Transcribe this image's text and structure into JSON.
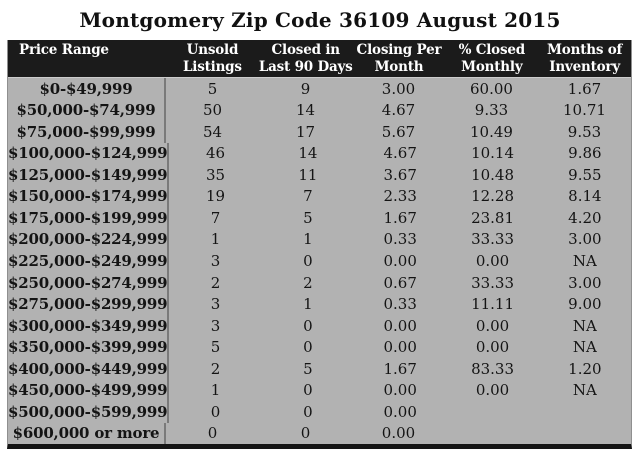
{
  "title": "Montgomery Zip Code 36109 August 2015",
  "colors": {
    "page_bg": "#ffffff",
    "header_bg": "#1b1b1b",
    "header_text": "#ffffff",
    "body_bg": "#b2b2b2",
    "divider": "#7a7a7a",
    "bottom_border": "#141414"
  },
  "table": {
    "columns": [
      {
        "label": "Price Range"
      },
      {
        "label": "Unsold\nListings"
      },
      {
        "label": "Closed in\nLast 90 Days"
      },
      {
        "label": "Closing Per\nMonth"
      },
      {
        "label": "% Closed\nMonthly"
      },
      {
        "label": "Months of\nInventory"
      }
    ]
  },
  "chart_data": {
    "type": "table",
    "title": "Montgomery Zip Code 36109 August 2015",
    "columns": [
      "Price Range",
      "Unsold Listings",
      "Closed in Last 90 Days",
      "Closing Per Month",
      "% Closed Monthly",
      "Months of Inventory"
    ],
    "rows": [
      [
        "$0-$49,999",
        "5",
        "9",
        "3.00",
        "60.00",
        "1.67"
      ],
      [
        "$50,000-$74,999",
        "50",
        "14",
        "4.67",
        "9.33",
        "10.71"
      ],
      [
        "$75,000-$99,999",
        "54",
        "17",
        "5.67",
        "10.49",
        "9.53"
      ],
      [
        "$100,000-$124,999",
        "46",
        "14",
        "4.67",
        "10.14",
        "9.86"
      ],
      [
        "$125,000-$149,999",
        "35",
        "11",
        "3.67",
        "10.48",
        "9.55"
      ],
      [
        "$150,000-$174,999",
        "19",
        "7",
        "2.33",
        "12.28",
        "8.14"
      ],
      [
        "$175,000-$199,999",
        "7",
        "5",
        "1.67",
        "23.81",
        "4.20"
      ],
      [
        "$200,000-$224,999",
        "1",
        "1",
        "0.33",
        "33.33",
        "3.00"
      ],
      [
        "$225,000-$249,999",
        "3",
        "0",
        "0.00",
        "0.00",
        "NA"
      ],
      [
        "$250,000-$274,999",
        "2",
        "2",
        "0.67",
        "33.33",
        "3.00"
      ],
      [
        "$275,000-$299,999",
        "3",
        "1",
        "0.33",
        "11.11",
        "9.00"
      ],
      [
        "$300,000-$349,999",
        "3",
        "0",
        "0.00",
        "0.00",
        "NA"
      ],
      [
        "$350,000-$399,999",
        "5",
        "0",
        "0.00",
        "0.00",
        "NA"
      ],
      [
        "$400,000-$449,999",
        "2",
        "5",
        "1.67",
        "83.33",
        "1.20"
      ],
      [
        "$450,000-$499,999",
        "1",
        "0",
        "0.00",
        "0.00",
        "NA"
      ],
      [
        "$500,000-$599,999",
        "0",
        "0",
        "0.00",
        "",
        ""
      ],
      [
        "$600,000 or more",
        "0",
        "0",
        "0.00",
        "",
        ""
      ]
    ]
  }
}
